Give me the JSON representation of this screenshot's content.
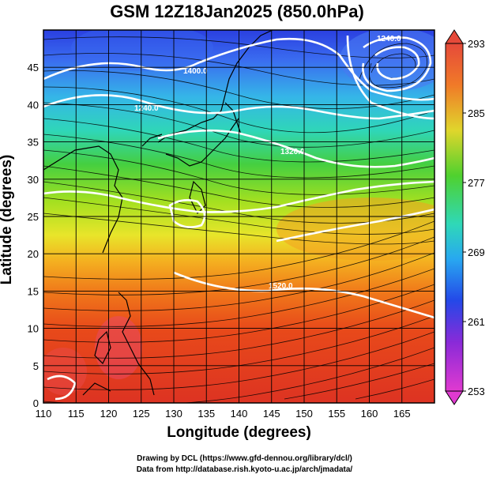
{
  "title": "GSM 12Z18Jan2025 (850.0hPa)",
  "x_axis": {
    "label": "Longitude (degrees)",
    "ticks": [
      "110",
      "115",
      "120",
      "125",
      "130",
      "135",
      "140",
      "145",
      "150",
      "155",
      "160",
      "165"
    ]
  },
  "y_axis": {
    "label": "Latitude  (degrees)",
    "ticks": [
      "0",
      "5",
      "10",
      "15",
      "20",
      "25",
      "30",
      "35",
      "40",
      "45"
    ]
  },
  "colorbar": {
    "ticks": [
      "293",
      "285",
      "277",
      "269",
      "261",
      "253"
    ]
  },
  "contour_labels": [
    "1400.0",
    "1240.0",
    "1320.0",
    "1520.0",
    "1240.0"
  ],
  "credits": {
    "line1": "Drawing by DCL (https://www.gfd-dennou.org/library/dcl/)",
    "line2": "Data from http://database.rish.kyoto-u.ac.jp/arch/jmadata/"
  },
  "chart_data": {
    "type": "heatmap",
    "title": "GSM 12Z18Jan2025 (850.0hPa)",
    "xlabel": "Longitude (degrees)",
    "ylabel": "Latitude  (degrees)",
    "xlim": [
      110,
      170
    ],
    "ylim": [
      0,
      50
    ],
    "colorbar_range": [
      253,
      293
    ],
    "overlays": [
      "geopotential height contours (white)",
      "wind streamlines (black)",
      "coastlines"
    ]
  }
}
